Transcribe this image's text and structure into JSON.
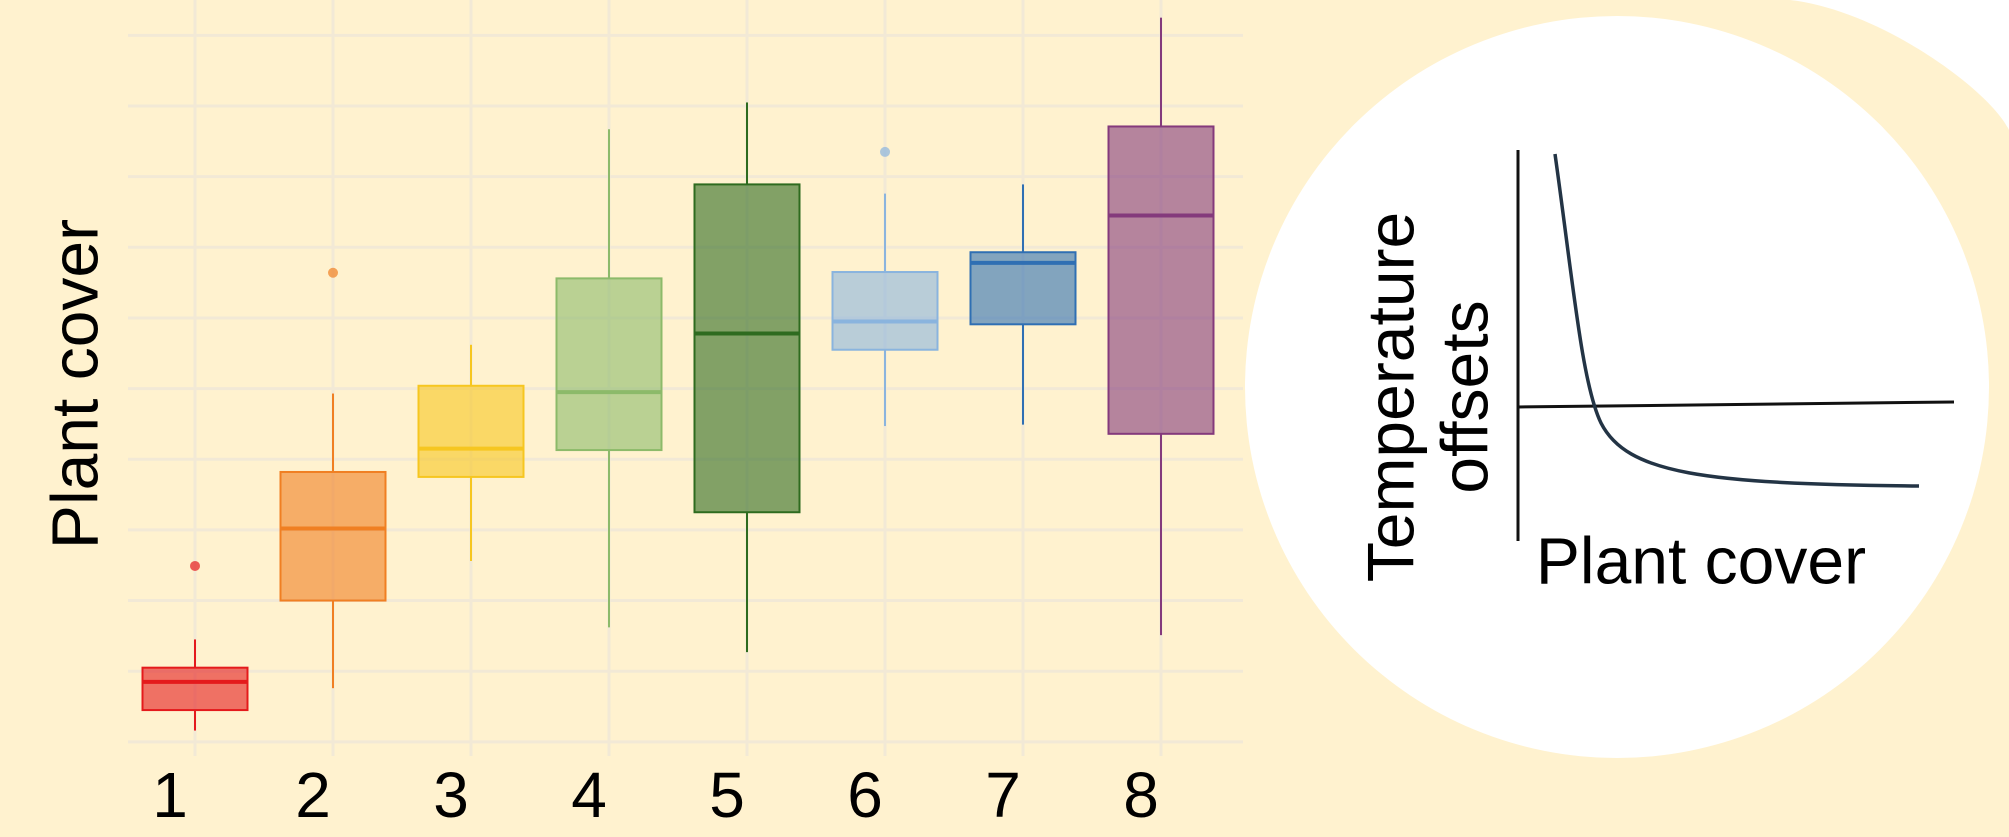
{
  "chart_data": {
    "type": "box",
    "ylabel": "Plant cover",
    "categories": [
      "1",
      "2",
      "3",
      "4",
      "5",
      "6",
      "7",
      "8"
    ],
    "boxes": [
      {
        "min": 0.16,
        "q1": 0.45,
        "median": 0.85,
        "q3": 1.05,
        "max": 1.45,
        "outliers": [
          2.49
        ],
        "color": "#e41a1c"
      },
      {
        "min": 0.76,
        "q1": 2.0,
        "median": 3.02,
        "q3": 3.82,
        "max": 4.93,
        "outliers": [
          6.64
        ],
        "color": "#f07f22"
      },
      {
        "min": 2.56,
        "q1": 3.75,
        "median": 4.15,
        "q3": 5.04,
        "max": 5.62,
        "outliers": [],
        "color": "#f6c620"
      },
      {
        "min": 1.62,
        "q1": 4.13,
        "median": 4.95,
        "q3": 6.56,
        "max": 8.67,
        "outliers": [],
        "color": "#8cba6a"
      },
      {
        "min": 1.27,
        "q1": 3.25,
        "median": 5.78,
        "q3": 7.89,
        "max": 9.05,
        "outliers": [],
        "color": "#2e6b1f"
      },
      {
        "min": 4.47,
        "q1": 5.55,
        "median": 5.95,
        "q3": 6.65,
        "max": 7.76,
        "outliers": [
          8.35
        ],
        "color": "#8ab4de"
      },
      {
        "min": 4.49,
        "q1": 5.91,
        "median": 6.78,
        "q3": 6.93,
        "max": 7.89,
        "outliers": [],
        "color": "#2f6fb3"
      },
      {
        "min": 1.51,
        "q1": 4.36,
        "median": 7.45,
        "q3": 8.71,
        "max": 10.25,
        "outliers": [],
        "color": "#843a7c"
      }
    ],
    "ylim": [
      -0.2,
      10.5
    ],
    "yticks": [
      0,
      1,
      2,
      3,
      4,
      5,
      6,
      7,
      8,
      9,
      10
    ],
    "grid": true
  },
  "inset": {
    "ylabel_lines": [
      "Temperature",
      "offsets"
    ],
    "xlabel": "Plant cover"
  }
}
